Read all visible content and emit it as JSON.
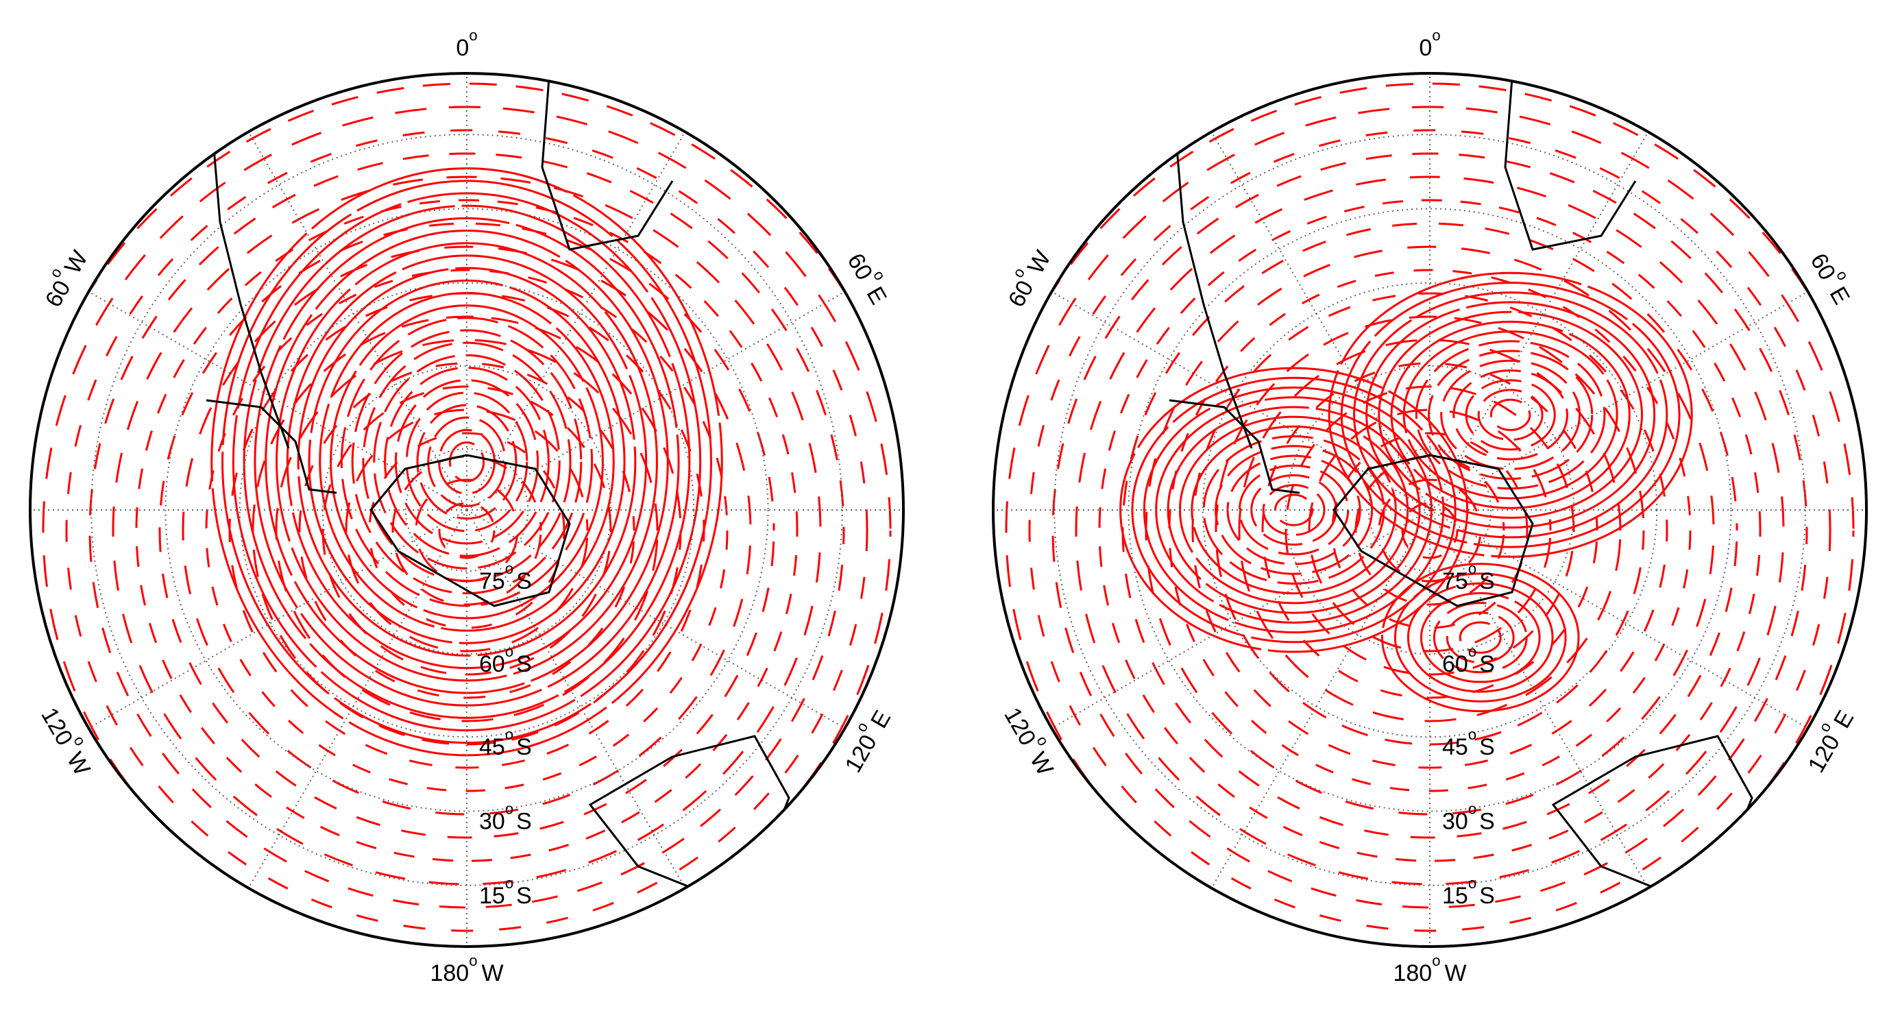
{
  "degree_mark": "o",
  "maps": [
    {
      "longitude_labels": [
        {
          "deg": "0"
        },
        {
          "deg": "60",
          "hem": "E"
        },
        {
          "deg": "120",
          "hem": "E"
        },
        {
          "deg": "180",
          "hem": "W"
        },
        {
          "deg": "120",
          "hem": "W"
        },
        {
          "deg": "60",
          "hem": "W"
        }
      ],
      "latitude_labels": [
        {
          "deg": "75",
          "hem": "S"
        },
        {
          "deg": "60",
          "hem": "S"
        },
        {
          "deg": "45",
          "hem": "S"
        },
        {
          "deg": "30",
          "hem": "S"
        },
        {
          "deg": "15",
          "hem": "S"
        }
      ]
    },
    {
      "longitude_labels": [
        {
          "deg": "0"
        },
        {
          "deg": "60",
          "hem": "E"
        },
        {
          "deg": "120",
          "hem": "E"
        },
        {
          "deg": "180",
          "hem": "W"
        },
        {
          "deg": "120",
          "hem": "W"
        },
        {
          "deg": "60",
          "hem": "W"
        }
      ],
      "latitude_labels": [
        {
          "deg": "75",
          "hem": "S"
        },
        {
          "deg": "60",
          "hem": "S"
        },
        {
          "deg": "45",
          "hem": "S"
        },
        {
          "deg": "30",
          "hem": "S"
        },
        {
          "deg": "15",
          "hem": "S"
        }
      ]
    }
  ]
}
